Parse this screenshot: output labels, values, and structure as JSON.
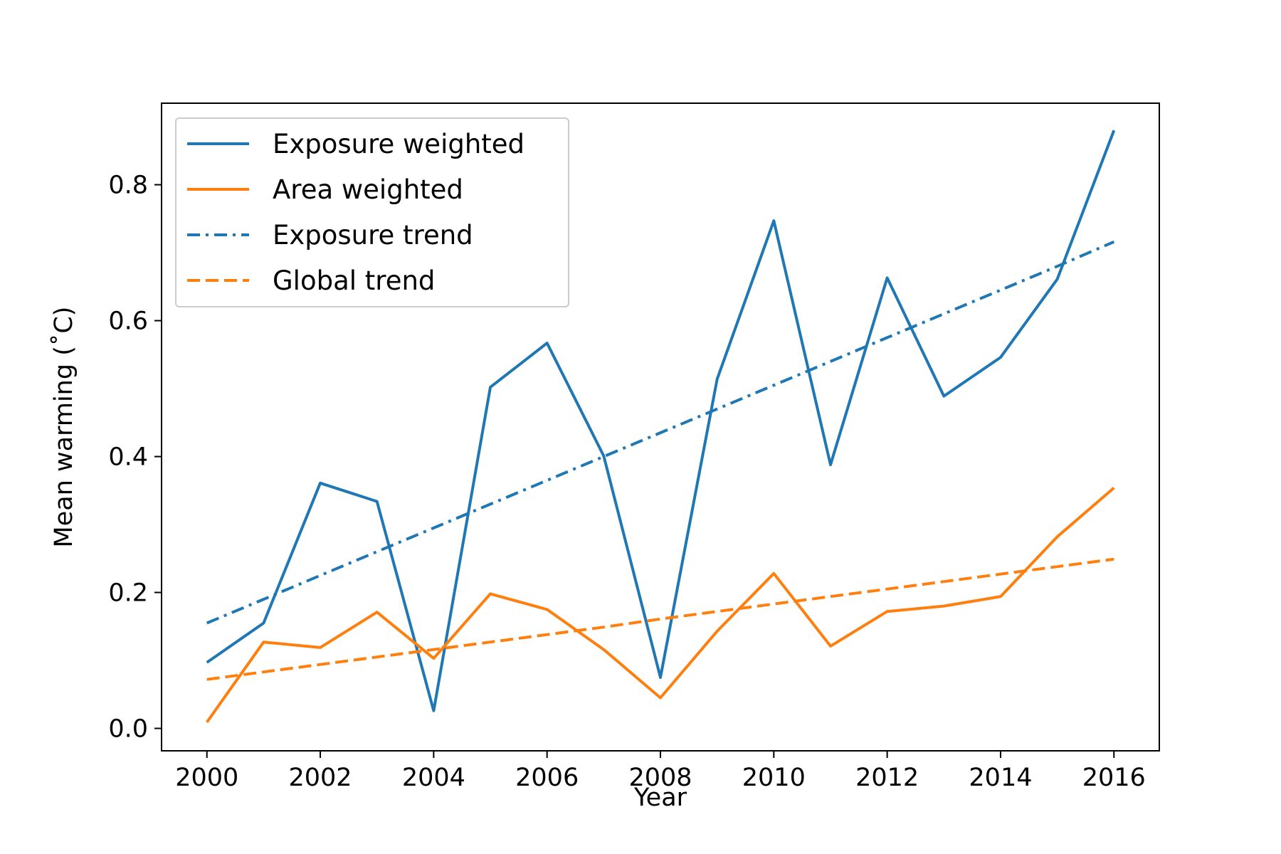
{
  "chart_data": {
    "type": "line",
    "title": "",
    "xlabel": "Year",
    "ylabel": "Mean warming (˚C)",
    "xlim": [
      1999.2,
      2016.8
    ],
    "ylim": [
      -0.033,
      0.92
    ],
    "x_ticks": [
      2000,
      2002,
      2004,
      2006,
      2008,
      2010,
      2012,
      2014,
      2016
    ],
    "y_ticks": [
      0.0,
      0.2,
      0.4,
      0.6,
      0.8
    ],
    "y_tick_labels": [
      "0.0",
      "0.2",
      "0.4",
      "0.6",
      "0.8"
    ],
    "x_tick_labels": [
      "2000",
      "2002",
      "2004",
      "2006",
      "2008",
      "2010",
      "2012",
      "2014",
      "2016"
    ],
    "grid": false,
    "legend_position": "top-left",
    "x": [
      2000,
      2001,
      2002,
      2003,
      2004,
      2005,
      2006,
      2007,
      2008,
      2009,
      2010,
      2011,
      2012,
      2013,
      2014,
      2015,
      2016
    ],
    "series": [
      {
        "name": "Exposure weighted",
        "style": "solid",
        "color": "#1f77b4",
        "values": [
          0.097,
          0.155,
          0.361,
          0.334,
          0.026,
          0.502,
          0.567,
          0.401,
          0.075,
          0.514,
          0.747,
          0.388,
          0.663,
          0.489,
          0.546,
          0.661,
          0.88
        ]
      },
      {
        "name": "Area weighted",
        "style": "solid",
        "color": "#ff7f0e",
        "values": [
          0.009,
          0.127,
          0.119,
          0.171,
          0.103,
          0.198,
          0.175,
          0.116,
          0.045,
          0.143,
          0.228,
          0.121,
          0.172,
          0.18,
          0.194,
          0.282,
          0.354
        ]
      },
      {
        "name": "Exposure trend",
        "style": "dashdot",
        "color": "#1f77b4",
        "values": [
          0.155,
          0.19,
          0.225,
          0.26,
          0.295,
          0.33,
          0.365,
          0.4,
          0.435,
          0.47,
          0.505,
          0.54,
          0.575,
          0.61,
          0.645,
          0.68,
          0.716
        ]
      },
      {
        "name": "Global trend",
        "style": "dashed",
        "color": "#ff7f0e",
        "values": [
          0.072,
          0.083,
          0.094,
          0.105,
          0.116,
          0.127,
          0.138,
          0.149,
          0.161,
          0.172,
          0.183,
          0.194,
          0.205,
          0.216,
          0.227,
          0.238,
          0.249
        ]
      }
    ]
  }
}
